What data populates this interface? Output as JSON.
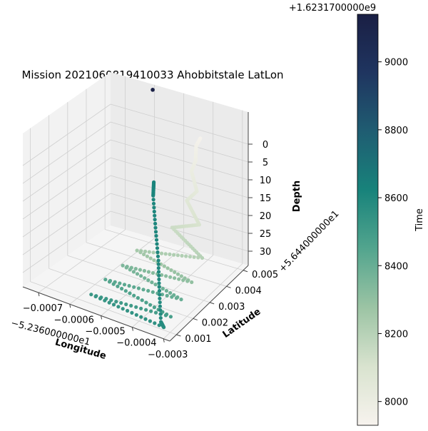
{
  "chart_data": {
    "type": "scatter3d",
    "title": "Mission 2021060819410033 Ahobbitstale LatLon",
    "xlabel": "Longitude",
    "ylabel": "Latitude",
    "zlabel": "Depth",
    "x_offset_label": "−5.236000000e1",
    "y_offset_label": "+5.644000000e1",
    "x_ticks": [
      -0.0007,
      -0.0006,
      -0.0005,
      -0.0004,
      -0.0003
    ],
    "x_tick_labels": [
      "−0.0007",
      "−0.0006",
      "−0.0005",
      "−0.0004",
      "−0.0003"
    ],
    "y_ticks": [
      0.001,
      0.002,
      0.003,
      0.004,
      0.005
    ],
    "y_tick_labels": [
      "0.001",
      "0.002",
      "0.003",
      "0.004",
      "0.005"
    ],
    "z_ticks": [
      0,
      5,
      10,
      15,
      20,
      25,
      30
    ],
    "z_tick_labels": [
      "0",
      "5",
      "10",
      "15",
      "20",
      "25",
      "30"
    ],
    "z_inverted": true,
    "colorbar": {
      "label": "Time",
      "offset_label": "+1.6231700000e9",
      "ticks": [
        8000,
        8200,
        8400,
        8600,
        8800,
        9000
      ],
      "tick_labels": [
        "8000",
        "8200",
        "8400",
        "8600",
        "8800",
        "9000"
      ],
      "range": [
        7930,
        9140
      ],
      "colors": [
        "#f7f3ee",
        "#d9e3cf",
        "#9cc4a4",
        "#53a58e",
        "#18837b",
        "#1f5d72",
        "#1f3560",
        "#1a1f44"
      ]
    },
    "series": [
      {
        "points": [
          {
            "x": -0.00042,
            "y": 0.0049,
            "z": 0,
            "t": 7940
          },
          {
            "x": -0.00044,
            "y": 0.005,
            "z": 3,
            "t": 7960
          },
          {
            "x": -0.00043,
            "y": 0.0048,
            "z": 6,
            "t": 7980
          },
          {
            "x": -0.00045,
            "y": 0.0049,
            "z": 10,
            "t": 8000
          },
          {
            "x": -0.00042,
            "y": 0.0047,
            "z": 14,
            "t": 8030
          },
          {
            "x": -0.00046,
            "y": 0.0048,
            "z": 18,
            "t": 8060
          },
          {
            "x": -0.0004,
            "y": 0.0045,
            "z": 22,
            "t": 8100
          },
          {
            "x": -0.00048,
            "y": 0.0043,
            "z": 24,
            "t": 8140
          },
          {
            "x": -0.00035,
            "y": 0.0038,
            "z": 27,
            "t": 8200
          },
          {
            "x": -0.00055,
            "y": 0.0035,
            "z": 29,
            "t": 8250
          },
          {
            "x": -0.00034,
            "y": 0.003,
            "z": 30,
            "t": 8300
          },
          {
            "x": -0.00055,
            "y": 0.0027,
            "z": 30,
            "t": 8350
          },
          {
            "x": -0.00033,
            "y": 0.0022,
            "z": 31,
            "t": 8400
          },
          {
            "x": -0.00056,
            "y": 0.0019,
            "z": 31,
            "t": 8440
          },
          {
            "x": -0.00032,
            "y": 0.0014,
            "z": 32,
            "t": 8480
          },
          {
            "x": -0.00056,
            "y": 0.0011,
            "z": 32,
            "t": 8520
          },
          {
            "x": -0.00031,
            "y": 0.0008,
            "z": 32,
            "t": 8560
          },
          {
            "x": -0.00033,
            "y": 0.001,
            "z": 32,
            "t": 8580
          },
          {
            "x": -0.00045,
            "y": 0.003,
            "z": 27,
            "t": 8600
          },
          {
            "x": -0.00058,
            "y": 0.0049,
            "z": 20,
            "t": 8610
          },
          {
            "x": -0.00059,
            "y": 0.0051,
            "z": 17,
            "t": 8620
          },
          {
            "x": -0.0006,
            "y": 0.0052,
            "z": -8,
            "t": 9130
          }
        ]
      }
    ]
  }
}
